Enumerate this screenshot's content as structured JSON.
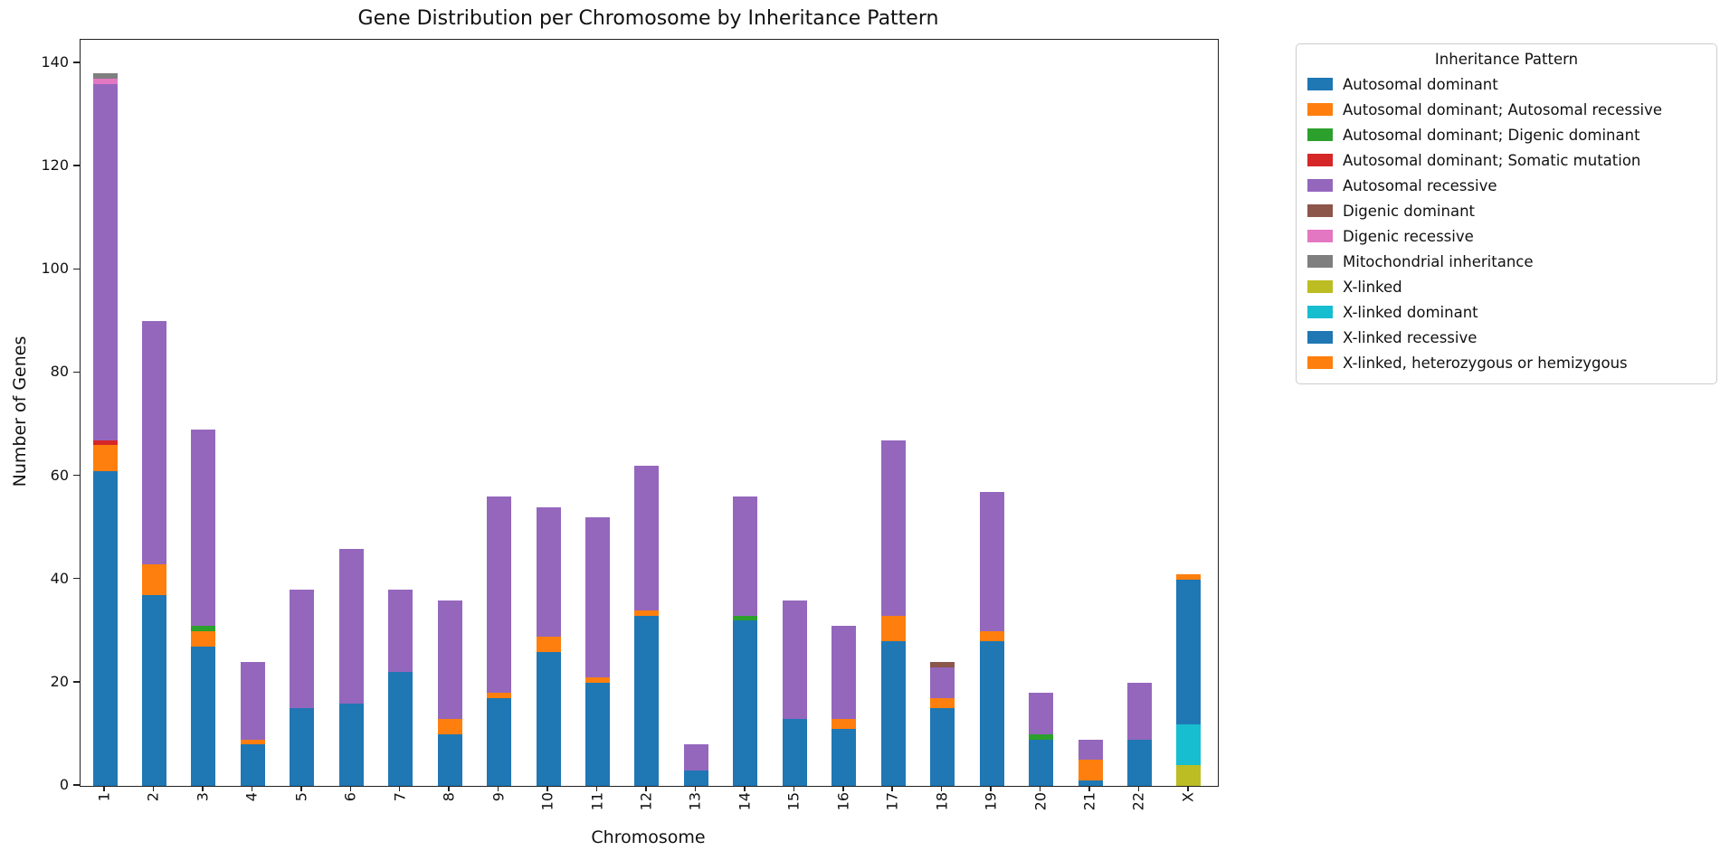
{
  "chart_data": {
    "type": "bar",
    "stacked": true,
    "title": "Gene Distribution per Chromosome by Inheritance Pattern",
    "xlabel": "Chromosome",
    "ylabel": "Number of Genes",
    "ylim": [
      0,
      140
    ],
    "yticks": [
      0,
      20,
      40,
      60,
      80,
      100,
      120,
      140
    ],
    "grid": false,
    "legend_title": "Inheritance Pattern",
    "legend_position": "outside upper right",
    "categories": [
      "1",
      "2",
      "3",
      "4",
      "5",
      "6",
      "7",
      "8",
      "9",
      "10",
      "11",
      "12",
      "13",
      "14",
      "15",
      "16",
      "17",
      "18",
      "19",
      "20",
      "21",
      "22",
      "X"
    ],
    "series": [
      {
        "name": "Autosomal dominant",
        "color": "#1f77b4",
        "values": [
          61,
          37,
          27,
          8,
          15,
          16,
          22,
          10,
          17,
          26,
          20,
          33,
          3,
          32,
          13,
          11,
          28,
          15,
          28,
          9,
          1,
          9,
          0
        ]
      },
      {
        "name": "Autosomal dominant; Autosomal recessive",
        "color": "#ff7f0e",
        "values": [
          5,
          6,
          3,
          1,
          0,
          0,
          0,
          3,
          1,
          3,
          1,
          1,
          0,
          0,
          0,
          2,
          5,
          2,
          2,
          0,
          4,
          0,
          0
        ]
      },
      {
        "name": "Autosomal dominant; Digenic dominant",
        "color": "#2ca02c",
        "values": [
          0,
          0,
          1,
          0,
          0,
          0,
          0,
          0,
          0,
          0,
          0,
          0,
          0,
          1,
          0,
          0,
          0,
          0,
          0,
          1,
          0,
          0,
          0
        ]
      },
      {
        "name": "Autosomal dominant; Somatic mutation",
        "color": "#d62728",
        "values": [
          1,
          0,
          0,
          0,
          0,
          0,
          0,
          0,
          0,
          0,
          0,
          0,
          0,
          0,
          0,
          0,
          0,
          0,
          0,
          0,
          0,
          0,
          0
        ]
      },
      {
        "name": "Autosomal recessive",
        "color": "#9467bd",
        "values": [
          69,
          47,
          38,
          15,
          23,
          30,
          16,
          23,
          38,
          25,
          31,
          28,
          5,
          23,
          23,
          18,
          34,
          6,
          27,
          8,
          4,
          11,
          0
        ]
      },
      {
        "name": "Digenic dominant",
        "color": "#8c564b",
        "values": [
          0,
          0,
          0,
          0,
          0,
          0,
          0,
          0,
          0,
          0,
          0,
          0,
          0,
          0,
          0,
          0,
          0,
          1,
          0,
          0,
          0,
          0,
          0
        ]
      },
      {
        "name": "Digenic recessive",
        "color": "#e377c2",
        "values": [
          1,
          0,
          0,
          0,
          0,
          0,
          0,
          0,
          0,
          0,
          0,
          0,
          0,
          0,
          0,
          0,
          0,
          0,
          0,
          0,
          0,
          0,
          0
        ]
      },
      {
        "name": "Mitochondrial inheritance",
        "color": "#7f7f7f",
        "values": [
          1,
          0,
          0,
          0,
          0,
          0,
          0,
          0,
          0,
          0,
          0,
          0,
          0,
          0,
          0,
          0,
          0,
          0,
          0,
          0,
          0,
          0,
          0
        ]
      },
      {
        "name": "X-linked",
        "color": "#bcbd22",
        "values": [
          0,
          0,
          0,
          0,
          0,
          0,
          0,
          0,
          0,
          0,
          0,
          0,
          0,
          0,
          0,
          0,
          0,
          0,
          0,
          0,
          0,
          0,
          4
        ]
      },
      {
        "name": "X-linked dominant",
        "color": "#17becf",
        "values": [
          0,
          0,
          0,
          0,
          0,
          0,
          0,
          0,
          0,
          0,
          0,
          0,
          0,
          0,
          0,
          0,
          0,
          0,
          0,
          0,
          0,
          0,
          8
        ]
      },
      {
        "name": "X-linked recessive",
        "color": "#1f77b4",
        "values": [
          0,
          0,
          0,
          0,
          0,
          0,
          0,
          0,
          0,
          0,
          0,
          0,
          0,
          0,
          0,
          0,
          0,
          0,
          0,
          0,
          0,
          0,
          28
        ]
      },
      {
        "name": "X-linked, heterozygous or hemizygous",
        "color": "#ff7f0e",
        "values": [
          0,
          0,
          0,
          0,
          0,
          0,
          0,
          0,
          0,
          0,
          0,
          0,
          0,
          0,
          0,
          0,
          0,
          0,
          0,
          0,
          0,
          0,
          1
        ]
      }
    ]
  }
}
